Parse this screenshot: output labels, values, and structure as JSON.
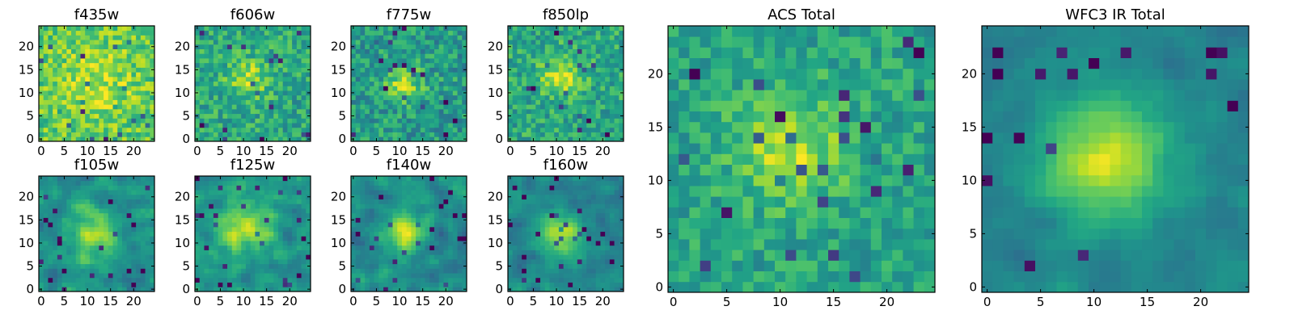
{
  "chart_data": [
    {
      "type": "heatmap",
      "title": "f435w",
      "xticks": [
        0,
        5,
        10,
        15,
        20
      ],
      "yticks": [
        0,
        5,
        10,
        15,
        20
      ],
      "xlim": [
        0,
        24
      ],
      "ylim": [
        0,
        24
      ],
      "grid_size": [
        25,
        25
      ],
      "colormap": "viridis",
      "description_of_values": "noisy, nearly uniform field"
    },
    {
      "type": "heatmap",
      "title": "f606w",
      "xticks": [
        0,
        5,
        10,
        15,
        20
      ],
      "yticks": [
        0,
        5,
        10,
        15,
        20
      ],
      "xlim": [
        0,
        24
      ],
      "ylim": [
        0,
        24
      ],
      "grid_size": [
        25,
        25
      ],
      "colormap": "viridis",
      "peak": [
        11,
        13
      ]
    },
    {
      "type": "heatmap",
      "title": "f775w",
      "xticks": [
        0,
        5,
        10,
        15,
        20
      ],
      "yticks": [
        0,
        5,
        10,
        15,
        20
      ],
      "xlim": [
        0,
        24
      ],
      "ylim": [
        0,
        24
      ],
      "grid_size": [
        25,
        25
      ],
      "colormap": "viridis",
      "peak": [
        11,
        12
      ]
    },
    {
      "type": "heatmap",
      "title": "f850lp",
      "xticks": [
        0,
        5,
        10,
        15,
        20
      ],
      "yticks": [
        0,
        5,
        10,
        15,
        20
      ],
      "xlim": [
        0,
        24
      ],
      "ylim": [
        0,
        24
      ],
      "grid_size": [
        25,
        25
      ],
      "colormap": "viridis",
      "peak": [
        11,
        14
      ]
    },
    {
      "type": "heatmap",
      "title": "f105w",
      "xticks": [
        0,
        5,
        10,
        15,
        20
      ],
      "yticks": [
        0,
        5,
        10,
        15,
        20
      ],
      "xlim": [
        0,
        24
      ],
      "ylim": [
        0,
        24
      ],
      "grid_size": [
        25,
        25
      ],
      "colormap": "viridis",
      "peak": [
        11,
        12
      ]
    },
    {
      "type": "heatmap",
      "title": "f125w",
      "xticks": [
        0,
        5,
        10,
        15,
        20
      ],
      "yticks": [
        0,
        5,
        10,
        15,
        20
      ],
      "xlim": [
        0,
        24
      ],
      "ylim": [
        0,
        24
      ],
      "grid_size": [
        25,
        25
      ],
      "colormap": "viridis",
      "peak": [
        10,
        13
      ]
    },
    {
      "type": "heatmap",
      "title": "f140w",
      "xticks": [
        0,
        5,
        10,
        15,
        20
      ],
      "yticks": [
        0,
        5,
        10,
        15,
        20
      ],
      "xlim": [
        0,
        24
      ],
      "ylim": [
        0,
        24
      ],
      "grid_size": [
        25,
        25
      ],
      "colormap": "viridis",
      "peak": [
        11,
        12
      ]
    },
    {
      "type": "heatmap",
      "title": "f160w",
      "xticks": [
        0,
        5,
        10,
        15,
        20
      ],
      "yticks": [
        0,
        5,
        10,
        15,
        20
      ],
      "xlim": [
        0,
        24
      ],
      "ylim": [
        0,
        24
      ],
      "grid_size": [
        25,
        25
      ],
      "colormap": "viridis",
      "peak": [
        11,
        12
      ]
    },
    {
      "type": "heatmap",
      "title": "ACS Total",
      "xticks": [
        0,
        5,
        10,
        15,
        20
      ],
      "yticks": [
        0,
        5,
        10,
        15,
        20
      ],
      "xlim": [
        0,
        24
      ],
      "ylim": [
        0,
        24
      ],
      "grid_size": [
        25,
        25
      ],
      "colormap": "viridis",
      "peak": [
        11,
        13
      ]
    },
    {
      "type": "heatmap",
      "title": "WFC3 IR Total",
      "xticks": [
        0,
        5,
        10,
        15,
        20
      ],
      "yticks": [
        0,
        5,
        10,
        15,
        20
      ],
      "xlim": [
        0,
        24
      ],
      "ylim": [
        0,
        24
      ],
      "grid_size": [
        25,
        25
      ],
      "colormap": "viridis",
      "peak": [
        11,
        12
      ]
    }
  ]
}
